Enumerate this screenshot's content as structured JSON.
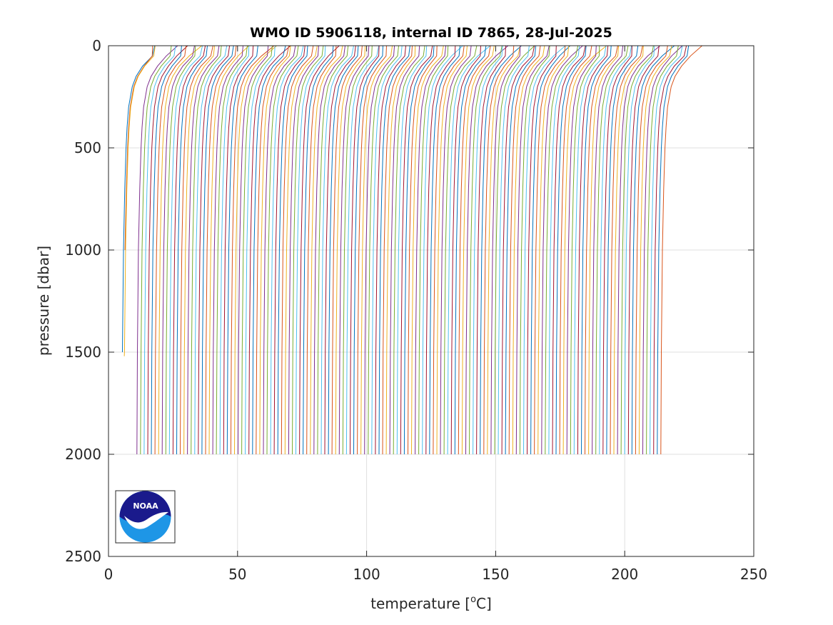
{
  "colors": {
    "background": "#ffffff",
    "axis": "#262626",
    "grid": "#dfdfdf",
    "line_colors": [
      "#0072BD",
      "#D95319",
      "#EDB120",
      "#7E2F8E",
      "#77AC30",
      "#4DBEEE",
      "#A2142F"
    ],
    "noaa_dark": "#1a1a8c",
    "noaa_light": "#1e96e6"
  },
  "logo": {
    "text": "NOAA",
    "icon": "noaa-logo-icon"
  },
  "chart_data": {
    "type": "line",
    "title": "WMO ID 5906118, internal ID 7865, 28-Jul-2025",
    "xlabel": "temperature [",
    "xlabel_unit_sup": "o",
    "xlabel_unit": "C]",
    "ylabel": "pressure [dbar]",
    "xlim": [
      0,
      250
    ],
    "ylim": [
      0,
      2500
    ],
    "y_reversed": true,
    "grid": true,
    "x_ticks": [
      0,
      50,
      100,
      150,
      200,
      250
    ],
    "y_ticks": [
      0,
      500,
      1000,
      1500,
      2000,
      2500
    ],
    "x_tick_labels": [
      "0",
      "50",
      "100",
      "150",
      "200",
      "250"
    ],
    "y_tick_labels": [
      "0",
      "500",
      "1000",
      "1500",
      "2000",
      "2500"
    ],
    "series_count": 149,
    "series_offset_step": 1.4,
    "series": [
      {
        "index": 0,
        "max_pressure": 1500,
        "surface_temp": 17.5,
        "deep_temp": 5.2
      },
      {
        "index": 1,
        "max_pressure": 1000,
        "surface_temp": 18.0,
        "deep_temp": 5.8
      },
      {
        "index": 2,
        "max_pressure": 1520,
        "surface_temp": 18.2,
        "deep_temp": 6.0
      }
    ],
    "profile_shape": {
      "pressure": [
        0,
        50,
        100,
        150,
        200,
        300,
        400,
        500,
        700,
        1000,
        1500,
        2000
      ],
      "temp_anomaly": [
        12.0,
        11.5,
        8.0,
        5.5,
        4.0,
        2.6,
        2.0,
        1.6,
        1.1,
        0.6,
        0.2,
        0.0
      ]
    }
  }
}
